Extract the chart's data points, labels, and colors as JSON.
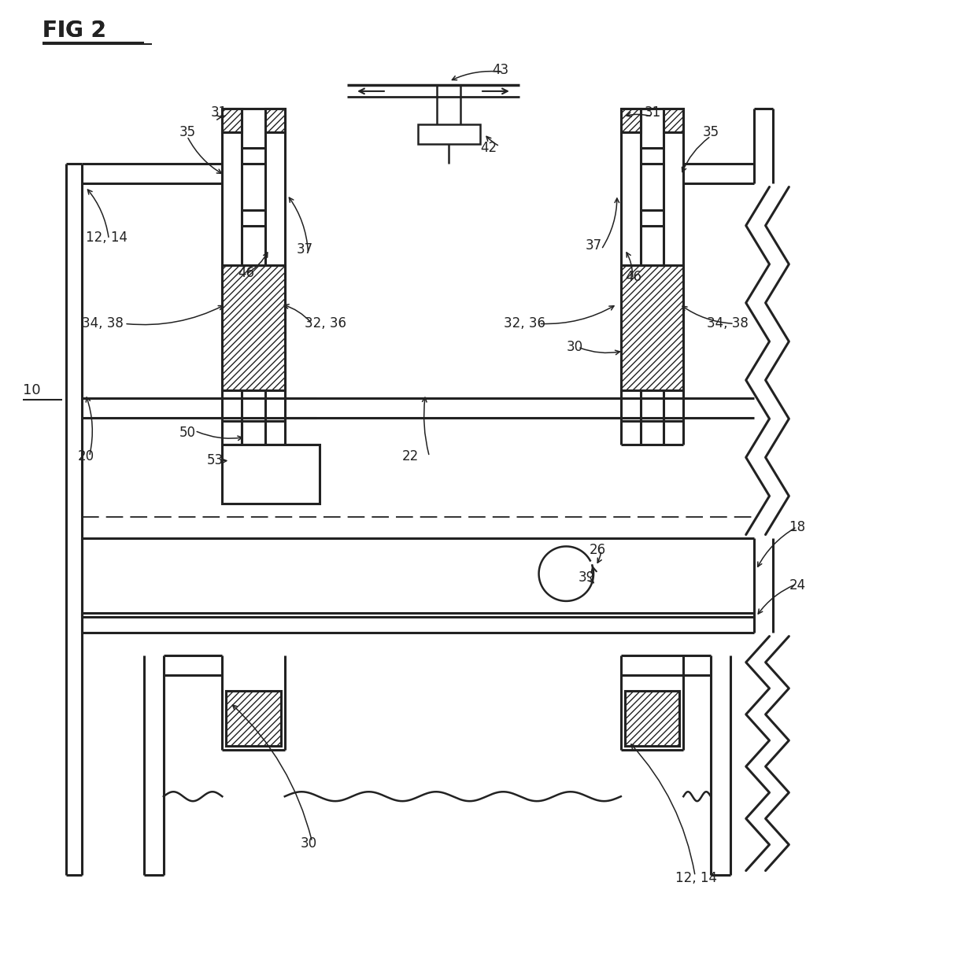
{
  "bg_color": "#ffffff",
  "line_color": "#222222",
  "fig_width": 12.4,
  "fig_height": 12.15
}
